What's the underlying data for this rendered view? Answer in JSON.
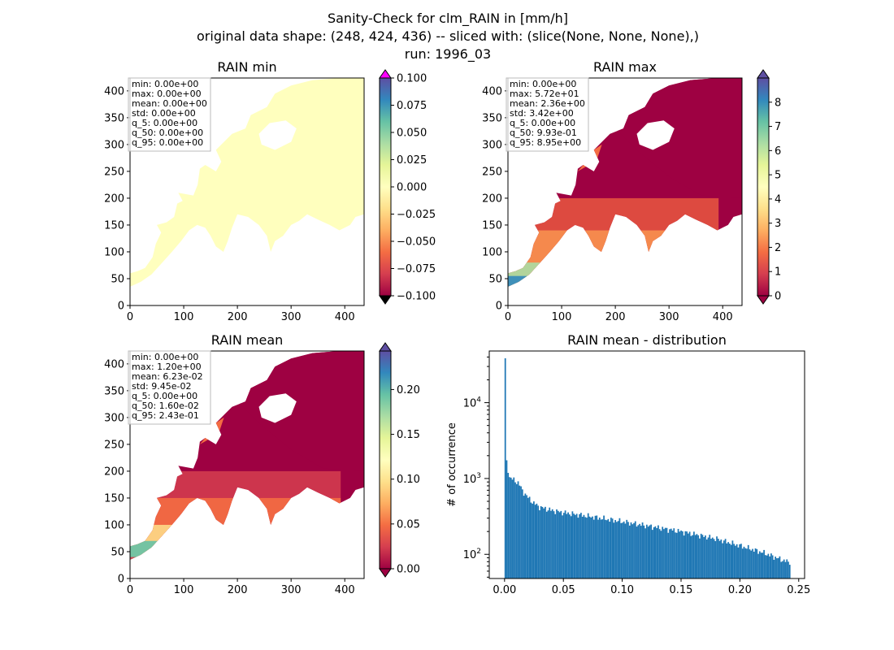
{
  "figure": {
    "title_lines": [
      "Sanity-Check for clm_RAIN in [mm/h]",
      "original data shape: (248, 424, 436) -- sliced with: (slice(None, None, None),)",
      "run: 1996_03"
    ]
  },
  "chart_data": [
    {
      "type": "heatmap",
      "title": "RAIN min",
      "xlim": [
        0,
        436
      ],
      "ylim": [
        0,
        424
      ],
      "xticks": [
        "0",
        "100",
        "200",
        "300",
        "400"
      ],
      "yticks": [
        "0",
        "50",
        "100",
        "150",
        "200",
        "250",
        "300",
        "350",
        "400"
      ],
      "stats": [
        "min: 0.00e+00",
        "max: 0.00e+00",
        "mean: 0.00e+00",
        "std: 0.00e+00",
        "q_5: 0.00e+00",
        "q_50: 0.00e+00",
        "q_95: 0.00e+00"
      ],
      "colorbar": {
        "range": [
          -0.1,
          0.1
        ],
        "ticks": [
          "-0.100",
          "-0.075",
          "-0.050",
          "-0.025",
          "0.000",
          "0.025",
          "0.050",
          "0.075",
          "0.100"
        ],
        "over_color": "#ff00ff",
        "under_color": "#000000",
        "colormap": "Spectral"
      },
      "field_color": "#ffffbe"
    },
    {
      "type": "heatmap",
      "title": "RAIN max",
      "xlim": [
        0,
        436
      ],
      "ylim": [
        0,
        424
      ],
      "xticks": [
        "0",
        "100",
        "200",
        "300",
        "400"
      ],
      "yticks": [
        "0",
        "50",
        "100",
        "150",
        "200",
        "250",
        "300",
        "350",
        "400"
      ],
      "stats": [
        "min: 0.00e+00",
        "max: 5.72e+01",
        "mean: 2.36e+00",
        "std: 3.42e+00",
        "q_5: 0.00e+00",
        "q_50: 9.93e-01",
        "q_95: 8.95e+00"
      ],
      "colorbar": {
        "range": [
          0,
          9
        ],
        "ticks": [
          "0",
          "1",
          "2",
          "3",
          "4",
          "5",
          "6",
          "7",
          "8"
        ],
        "colormap": "Spectral"
      }
    },
    {
      "type": "heatmap",
      "title": "RAIN mean",
      "xlim": [
        0,
        436
      ],
      "ylim": [
        0,
        424
      ],
      "xticks": [
        "0",
        "100",
        "200",
        "300",
        "400"
      ],
      "yticks": [
        "0",
        "50",
        "100",
        "150",
        "200",
        "250",
        "300",
        "350",
        "400"
      ],
      "stats": [
        "min: 0.00e+00",
        "max: 1.20e+00",
        "mean: 6.23e-02",
        "std: 9.45e-02",
        "q_5: 0.00e+00",
        "q_50: 1.60e-02",
        "q_95: 2.43e-01"
      ],
      "colorbar": {
        "range": [
          0,
          0.243
        ],
        "ticks": [
          "0.00",
          "0.05",
          "0.10",
          "0.15",
          "0.20"
        ],
        "colormap": "Spectral"
      }
    },
    {
      "type": "bar",
      "title": "RAIN mean - distribution",
      "ylabel": "# of occurrence",
      "yscale": "log",
      "xlim": [
        -0.013,
        0.255
      ],
      "ylim": [
        48,
        48000
      ],
      "xticks": [
        "0.00",
        "0.05",
        "0.10",
        "0.15",
        "0.20",
        "0.25"
      ],
      "yticks": [
        "10^2",
        "10^3",
        "10^4"
      ],
      "bin_range": [
        0,
        0.243
      ],
      "bin_count": 200,
      "color": "#1f77b4",
      "anchors": [
        {
          "x": 0.0,
          "y": 37000
        },
        {
          "x": 0.00122,
          "y": 1800
        },
        {
          "x": 0.0024,
          "y": 1500
        },
        {
          "x": 0.004,
          "y": 1050
        },
        {
          "x": 0.008,
          "y": 950
        },
        {
          "x": 0.012,
          "y": 870
        },
        {
          "x": 0.015,
          "y": 700
        },
        {
          "x": 0.02,
          "y": 560
        },
        {
          "x": 0.025,
          "y": 470
        },
        {
          "x": 0.03,
          "y": 420
        },
        {
          "x": 0.04,
          "y": 380
        },
        {
          "x": 0.05,
          "y": 355
        },
        {
          "x": 0.07,
          "y": 320
        },
        {
          "x": 0.1,
          "y": 270
        },
        {
          "x": 0.13,
          "y": 225
        },
        {
          "x": 0.15,
          "y": 200
        },
        {
          "x": 0.18,
          "y": 160
        },
        {
          "x": 0.2,
          "y": 130
        },
        {
          "x": 0.22,
          "y": 105
        },
        {
          "x": 0.24,
          "y": 80
        }
      ]
    }
  ]
}
